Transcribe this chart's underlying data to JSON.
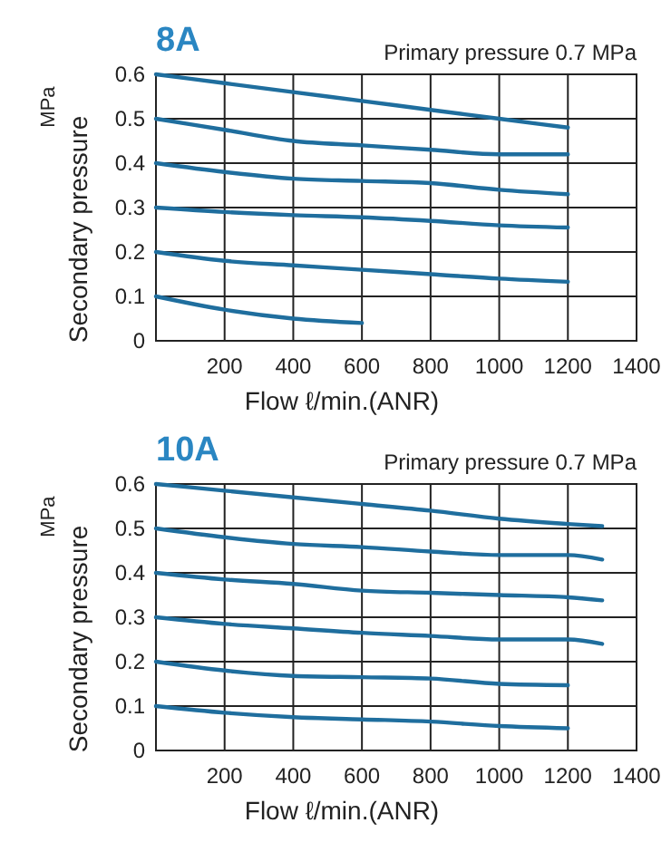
{
  "chart_data": [
    {
      "type": "line",
      "title": "8A",
      "subtitle": "Primary pressure 0.7 MPa",
      "xlabel": "Flow ℓ/min.(ANR)",
      "ylabel": "Secondary pressure",
      "annotations": [
        "MPa"
      ],
      "xlim": [
        0,
        1400
      ],
      "ylim": [
        0,
        0.6
      ],
      "xticks": [
        200,
        400,
        600,
        800,
        1000,
        1200,
        1400
      ],
      "yticks": [
        0,
        0.1,
        0.2,
        0.3,
        0.4,
        0.5,
        0.6
      ],
      "grid": true,
      "series": [
        {
          "color": "#1f6e9e",
          "x": [
            0,
            200,
            400,
            600,
            800,
            1000,
            1200
          ],
          "values": [
            0.6,
            0.58,
            0.56,
            0.54,
            0.52,
            0.5,
            0.48
          ]
        },
        {
          "color": "#1f6e9e",
          "x": [
            0,
            200,
            400,
            600,
            800,
            1000,
            1200
          ],
          "values": [
            0.5,
            0.475,
            0.45,
            0.44,
            0.43,
            0.42,
            0.42
          ]
        },
        {
          "color": "#1f6e9e",
          "x": [
            0,
            200,
            400,
            600,
            800,
            1000,
            1200
          ],
          "values": [
            0.4,
            0.38,
            0.365,
            0.36,
            0.355,
            0.34,
            0.33
          ]
        },
        {
          "color": "#1f6e9e",
          "x": [
            0,
            200,
            400,
            600,
            800,
            1000,
            1200
          ],
          "values": [
            0.3,
            0.29,
            0.283,
            0.278,
            0.27,
            0.26,
            0.255
          ]
        },
        {
          "color": "#1f6e9e",
          "x": [
            0,
            200,
            400,
            600,
            800,
            1000,
            1200
          ],
          "values": [
            0.2,
            0.18,
            0.17,
            0.16,
            0.15,
            0.14,
            0.133
          ]
        },
        {
          "color": "#1f6e9e",
          "x": [
            0,
            200,
            400,
            600
          ],
          "values": [
            0.1,
            0.07,
            0.05,
            0.04
          ]
        }
      ]
    },
    {
      "type": "line",
      "title": "10A",
      "subtitle": "Primary pressure 0.7 MPa",
      "xlabel": "Flow ℓ/min.(ANR)",
      "ylabel": "Secondary pressure",
      "annotations": [
        "MPa"
      ],
      "xlim": [
        0,
        1400
      ],
      "ylim": [
        0,
        0.6
      ],
      "xticks": [
        200,
        400,
        600,
        800,
        1000,
        1200,
        1400
      ],
      "yticks": [
        0,
        0.1,
        0.2,
        0.3,
        0.4,
        0.5,
        0.6
      ],
      "grid": true,
      "series": [
        {
          "color": "#1f6e9e",
          "x": [
            0,
            200,
            400,
            600,
            800,
            1000,
            1200,
            1300
          ],
          "values": [
            0.6,
            0.585,
            0.57,
            0.555,
            0.54,
            0.522,
            0.51,
            0.505
          ]
        },
        {
          "color": "#1f6e9e",
          "x": [
            0,
            200,
            400,
            600,
            800,
            1000,
            1200,
            1300
          ],
          "values": [
            0.5,
            0.48,
            0.465,
            0.458,
            0.448,
            0.44,
            0.44,
            0.43
          ]
        },
        {
          "color": "#1f6e9e",
          "x": [
            0,
            200,
            400,
            600,
            800,
            1000,
            1200,
            1300
          ],
          "values": [
            0.4,
            0.385,
            0.375,
            0.36,
            0.355,
            0.35,
            0.345,
            0.338
          ]
        },
        {
          "color": "#1f6e9e",
          "x": [
            0,
            200,
            400,
            600,
            800,
            1000,
            1200,
            1300
          ],
          "values": [
            0.3,
            0.285,
            0.275,
            0.265,
            0.258,
            0.25,
            0.25,
            0.24
          ]
        },
        {
          "color": "#1f6e9e",
          "x": [
            0,
            200,
            400,
            600,
            800,
            1000,
            1200
          ],
          "values": [
            0.2,
            0.18,
            0.168,
            0.165,
            0.162,
            0.15,
            0.147
          ]
        },
        {
          "color": "#1f6e9e",
          "x": [
            0,
            200,
            400,
            600,
            800,
            1000,
            1200
          ],
          "values": [
            0.1,
            0.085,
            0.075,
            0.07,
            0.065,
            0.055,
            0.05
          ]
        }
      ]
    }
  ]
}
